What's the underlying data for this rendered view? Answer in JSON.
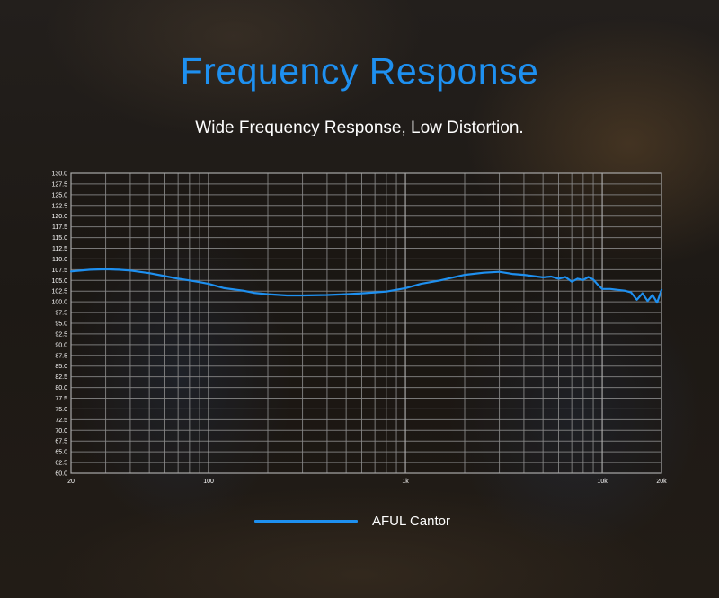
{
  "title": "Frequency Response",
  "subtitle": "Wide Frequency Response, Low Distortion.",
  "chart_data": {
    "type": "line",
    "x_scale": "log",
    "xlim": [
      20,
      20000
    ],
    "ylim": [
      60.0,
      130.0
    ],
    "y_ticks": [
      "130.0",
      "127.5",
      "125.0",
      "122.5",
      "120.0",
      "117.5",
      "115.0",
      "112.5",
      "110.0",
      "107.5",
      "105.0",
      "102.5",
      "100.0",
      "97.5",
      "95.0",
      "92.5",
      "90.0",
      "87.5",
      "85.0",
      "82.5",
      "80.0",
      "77.5",
      "75.0",
      "72.5",
      "70.0",
      "67.5",
      "65.0",
      "62.5",
      "60.0"
    ],
    "x_ticks": [
      {
        "label": "20",
        "value": 20
      },
      {
        "label": "100",
        "value": 100
      },
      {
        "label": "1k",
        "value": 1000
      },
      {
        "label": "10k",
        "value": 10000
      },
      {
        "label": "20k",
        "value": 20000
      }
    ],
    "grid": true,
    "legend_position": "bottom-center",
    "series": [
      {
        "name": "AFUL Cantor",
        "color": "#1e90f0",
        "x": [
          20,
          25,
          30,
          35,
          40,
          50,
          60,
          70,
          80,
          90,
          100,
          120,
          150,
          170,
          200,
          250,
          300,
          400,
          500,
          600,
          700,
          800,
          1000,
          1200,
          1500,
          2000,
          2500,
          3000,
          3500,
          4000,
          5000,
          5500,
          6000,
          6500,
          7000,
          7500,
          8000,
          8500,
          9000,
          9500,
          10000,
          11000,
          12000,
          13000,
          14000,
          15000,
          16000,
          17000,
          18000,
          19000,
          20000
        ],
        "values": [
          107.1,
          107.5,
          107.6,
          107.5,
          107.3,
          106.7,
          106.0,
          105.4,
          105.0,
          104.6,
          104.2,
          103.2,
          102.6,
          102.1,
          101.8,
          101.5,
          101.5,
          101.6,
          101.8,
          102.0,
          102.2,
          102.4,
          103.2,
          104.2,
          105.0,
          106.3,
          106.8,
          107.0,
          106.5,
          106.3,
          105.7,
          105.9,
          105.4,
          105.8,
          104.7,
          105.4,
          105.1,
          105.8,
          105.2,
          104.0,
          103.0,
          103.0,
          102.8,
          102.6,
          102.2,
          100.5,
          102.0,
          100.2,
          101.6,
          99.8,
          102.8
        ]
      }
    ]
  }
}
